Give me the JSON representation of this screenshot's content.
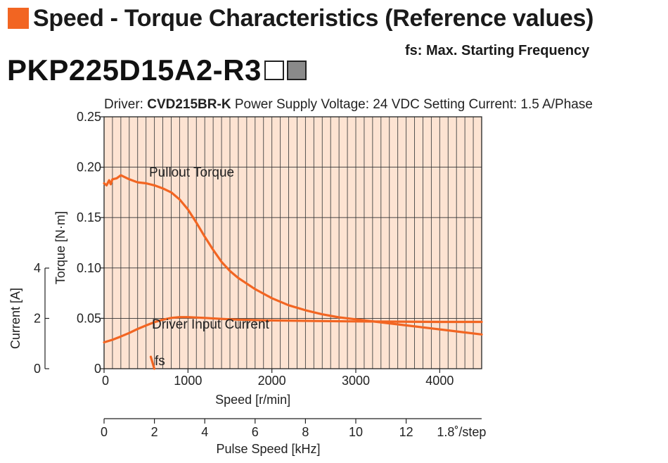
{
  "header": {
    "title": "Speed - Torque Characteristics (Reference values)",
    "fs_note": "fs: Max. Starting Frequency",
    "model": "PKP225D15A2-R3",
    "driver_prefix": "Driver: ",
    "driver_model": "CVD215BR-K",
    "driver_rest": "  Power Supply Voltage: 24 VDC  Setting Current: 1.5 A/Phase"
  },
  "colors": {
    "accent": "#f26522",
    "plot_bg": "#fde3d2",
    "curve": "#f26522"
  },
  "chart_data": {
    "type": "line",
    "x": {
      "label": "Speed [r/min]",
      "range": [
        0,
        4500
      ],
      "ticks": [
        0,
        1000,
        2000,
        3000,
        4000
      ],
      "tick_labels": [
        "0",
        "1000",
        "2000",
        "3000",
        "4000"
      ]
    },
    "x2": {
      "label": "Pulse Speed [kHz]",
      "suffix": "1.8˚/step",
      "ticks": [
        0,
        2,
        4,
        6,
        8,
        10,
        12
      ],
      "tick_labels": [
        "0",
        "2",
        "4",
        "6",
        "8",
        "10",
        "12"
      ],
      "kHz_at_max_speed": 15
    },
    "y_torque": {
      "label": "Torque [N·m]",
      "range": [
        0,
        0.25
      ],
      "ticks": [
        0,
        0.05,
        0.1,
        0.15,
        0.2,
        0.25
      ],
      "tick_labels": [
        "0",
        "0.05",
        "0.10",
        "0.15",
        "0.20",
        "0.25"
      ]
    },
    "y_current": {
      "label": "Current [A]",
      "range": [
        0,
        4
      ],
      "ticks": [
        0,
        2,
        4
      ],
      "tick_labels": [
        "0",
        "2",
        "4"
      ]
    },
    "grid": true,
    "series": [
      {
        "name": "Pullout Torque",
        "axis": "torque",
        "x": [
          0,
          30,
          60,
          80,
          100,
          150,
          200,
          300,
          400,
          500,
          600,
          700,
          800,
          900,
          1000,
          1100,
          1200,
          1300,
          1400,
          1500,
          1600,
          1800,
          2000,
          2200,
          2400,
          2600,
          2800,
          3000,
          3300,
          3600,
          3900,
          4200,
          4500
        ],
        "y": [
          0.184,
          0.182,
          0.187,
          0.183,
          0.188,
          0.189,
          0.192,
          0.188,
          0.185,
          0.184,
          0.182,
          0.179,
          0.175,
          0.168,
          0.158,
          0.145,
          0.131,
          0.118,
          0.106,
          0.097,
          0.09,
          0.079,
          0.07,
          0.063,
          0.058,
          0.054,
          0.051,
          0.049,
          0.046,
          0.043,
          0.04,
          0.037,
          0.034
        ]
      },
      {
        "name": "Driver Input Current",
        "axis": "current",
        "x": [
          0,
          100,
          200,
          300,
          400,
          500,
          600,
          700,
          800,
          900,
          1000,
          1200,
          1400,
          1600,
          2000,
          2500,
          3000,
          3500,
          4000,
          4500
        ],
        "y": [
          1.05,
          1.15,
          1.28,
          1.42,
          1.58,
          1.72,
          1.85,
          1.95,
          2.02,
          2.05,
          2.05,
          2.02,
          1.98,
          1.95,
          1.92,
          1.9,
          1.88,
          1.87,
          1.86,
          1.86
        ]
      }
    ],
    "fs_marker": {
      "label": "fs",
      "speed": 540
    },
    "annotations": {
      "torque_label": "Pullout Torque",
      "current_label": "Driver Input Current",
      "fs_label": "fs"
    }
  }
}
